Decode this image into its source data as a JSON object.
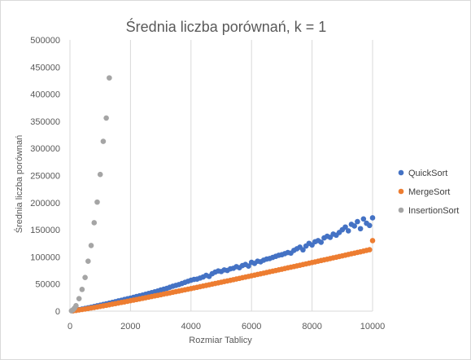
{
  "chart_data": {
    "type": "scatter",
    "title": "Średnia liczba porównań, k = 1",
    "xlabel": "Rozmiar Tablicy",
    "ylabel": "Średnia liczba porównań",
    "xlim": [
      0,
      10000
    ],
    "ylim": [
      0,
      500000
    ],
    "x_ticks": [
      "0",
      "2000",
      "4000",
      "6000",
      "8000",
      "10000"
    ],
    "y_ticks": [
      "0",
      "50000",
      "100000",
      "150000",
      "200000",
      "250000",
      "300000",
      "350000",
      "400000",
      "450000",
      "500000"
    ],
    "grid": "vertical",
    "legend_position": "right",
    "colors": {
      "QuickSort": "#4472c4",
      "MergeSort": "#ed7d31",
      "InsertionSort": "#a5a5a5"
    },
    "series": [
      {
        "name": "QuickSort",
        "x": [
          100,
          200,
          300,
          400,
          500,
          600,
          700,
          800,
          900,
          1000,
          1100,
          1200,
          1300,
          1400,
          1500,
          1600,
          1700,
          1800,
          1900,
          2000,
          2100,
          2200,
          2300,
          2400,
          2500,
          2600,
          2700,
          2800,
          2900,
          3000,
          3100,
          3200,
          3300,
          3400,
          3500,
          3600,
          3700,
          3800,
          3900,
          4000,
          4100,
          4200,
          4300,
          4400,
          4500,
          4600,
          4700,
          4800,
          4900,
          5000,
          5100,
          5200,
          5300,
          5400,
          5500,
          5600,
          5700,
          5800,
          5900,
          6000,
          6100,
          6200,
          6300,
          6400,
          6500,
          6600,
          6700,
          6800,
          6900,
          7000,
          7100,
          7200,
          7300,
          7400,
          7500,
          7600,
          7700,
          7800,
          7900,
          8000,
          8100,
          8200,
          8300,
          8400,
          8500,
          8600,
          8700,
          8800,
          8900,
          9000,
          9100,
          9200,
          9300,
          9400,
          9500,
          9600,
          9700,
          9800,
          9900,
          10000
        ],
        "values": [
          800,
          1700,
          2800,
          3900,
          5000,
          6200,
          7300,
          8600,
          9800,
          11000,
          12300,
          13500,
          14800,
          16000,
          17400,
          18800,
          20000,
          21500,
          22800,
          24000,
          25500,
          27000,
          28300,
          29600,
          31000,
          32500,
          34000,
          35500,
          37000,
          39000,
          40500,
          42000,
          44000,
          46000,
          47500,
          49000,
          51000,
          53000,
          55000,
          57000,
          58500,
          59000,
          61000,
          63000,
          66000,
          64000,
          69000,
          72000,
          74000,
          73000,
          76000,
          75000,
          78000,
          79000,
          82000,
          80000,
          84000,
          86000,
          83000,
          90000,
          88000,
          92000,
          91000,
          94000,
          96000,
          97000,
          99000,
          101000,
          103000,
          104000,
          106000,
          108000,
          107000,
          112000,
          115000,
          118000,
          113000,
          120000,
          125000,
          122000,
          128000,
          130000,
          127000,
          135000,
          138000,
          136000,
          142000,
          140000,
          145000,
          150000,
          155000,
          148000,
          160000,
          157000,
          165000,
          152000,
          170000,
          162000,
          158000,
          172000
        ]
      },
      {
        "name": "MergeSort",
        "x": [
          100,
          200,
          300,
          400,
          500,
          600,
          700,
          800,
          900,
          1000,
          1100,
          1200,
          1300,
          1400,
          1500,
          1600,
          1700,
          1800,
          1900,
          2000,
          2100,
          2200,
          2300,
          2400,
          2500,
          2600,
          2700,
          2800,
          2900,
          3000,
          3100,
          3200,
          3300,
          3400,
          3500,
          3600,
          3700,
          3800,
          3900,
          4000,
          4100,
          4200,
          4300,
          4400,
          4500,
          4600,
          4700,
          4800,
          4900,
          5000,
          5100,
          5200,
          5300,
          5400,
          5500,
          5600,
          5700,
          5800,
          5900,
          6000,
          6100,
          6200,
          6300,
          6400,
          6500,
          6600,
          6700,
          6800,
          6900,
          7000,
          7100,
          7200,
          7300,
          7400,
          7500,
          7600,
          7700,
          7800,
          7900,
          8000,
          8100,
          8200,
          8300,
          8400,
          8500,
          8600,
          8700,
          8800,
          8900,
          9000,
          9100,
          9200,
          9300,
          9400,
          9500,
          9600,
          9700,
          9800,
          9900,
          10000
        ],
        "values": [
          550,
          1300,
          2100,
          3000,
          3900,
          4800,
          5800,
          6700,
          7700,
          8700,
          9700,
          10700,
          11800,
          12800,
          13900,
          14900,
          16000,
          17000,
          18100,
          19200,
          20300,
          21400,
          22500,
          23600,
          24700,
          25800,
          26900,
          28000,
          29100,
          30200,
          31400,
          32500,
          33600,
          34800,
          35900,
          37000,
          38200,
          39300,
          40500,
          41600,
          42800,
          43900,
          45100,
          46300,
          47400,
          48600,
          49800,
          50900,
          52100,
          53300,
          54500,
          55700,
          56800,
          58000,
          59200,
          60400,
          61600,
          62800,
          64000,
          65200,
          66400,
          67600,
          68800,
          70000,
          71200,
          72500,
          73700,
          74900,
          76100,
          77300,
          78500,
          79800,
          81000,
          82200,
          83400,
          84600,
          85900,
          87100,
          88300,
          89600,
          90800,
          92000,
          93300,
          94500,
          95700,
          97000,
          98200,
          99400,
          100700,
          101900,
          103200,
          104400,
          105700,
          106900,
          108200,
          109400,
          110700,
          111900,
          113200,
          130000
        ]
      },
      {
        "name": "InsertionSort",
        "x": [
          50,
          100,
          150,
          200,
          300,
          400,
          500,
          600,
          700,
          800,
          900,
          1000,
          1100,
          1200,
          1300
        ],
        "values": [
          600,
          2500,
          5500,
          10000,
          23000,
          40000,
          62000,
          92000,
          121000,
          163000,
          201000,
          252000,
          313000,
          356000,
          430000
        ]
      }
    ]
  }
}
